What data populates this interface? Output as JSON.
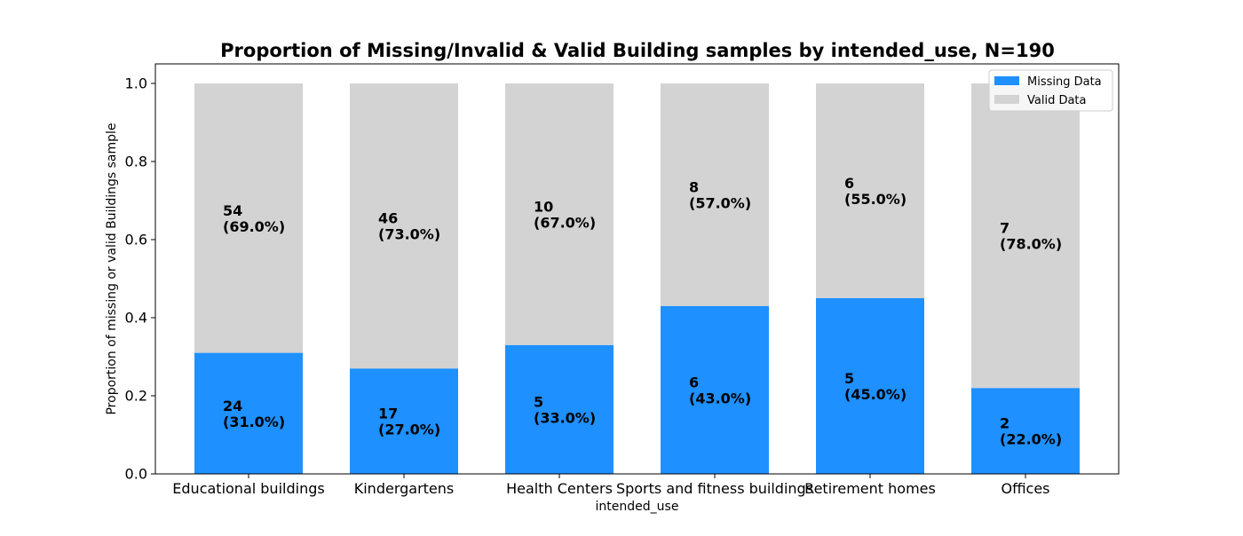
{
  "chart_data": {
    "type": "bar",
    "stacked": true,
    "title": "Proportion of Missing/Invalid & Valid Building samples by intended_use, N=190",
    "xlabel": "intended_use",
    "ylabel": "Proportion of missing or valid Buildings sample",
    "ylim": [
      0,
      1.05
    ],
    "yticks": [
      "0.0",
      "0.2",
      "0.4",
      "0.6",
      "0.8",
      "1.0"
    ],
    "categories": [
      "Educational buildings",
      "Kindergartens",
      "Health Centers",
      "Sports and fitness buildings",
      "Retirement homes",
      "Offices"
    ],
    "series": [
      {
        "name": "Missing Data",
        "color": "#1e90ff",
        "values": [
          0.31,
          0.27,
          0.33,
          0.43,
          0.45,
          0.22
        ],
        "counts": [
          "24",
          "17",
          "5",
          "6",
          "5",
          "2"
        ],
        "percents": [
          "(31.0%)",
          "(27.0%)",
          "(33.0%)",
          "(43.0%)",
          "(45.0%)",
          "(22.0%)"
        ]
      },
      {
        "name": "Valid Data",
        "color": "#d3d3d3",
        "values": [
          0.69,
          0.73,
          0.67,
          0.57,
          0.55,
          0.78
        ],
        "counts": [
          "54",
          "46",
          "10",
          "8",
          "6",
          "7"
        ],
        "percents": [
          "(69.0%)",
          "(73.0%)",
          "(67.0%)",
          "(57.0%)",
          "(55.0%)",
          "(78.0%)"
        ]
      }
    ],
    "grid": false,
    "legend_position": "top-right"
  }
}
